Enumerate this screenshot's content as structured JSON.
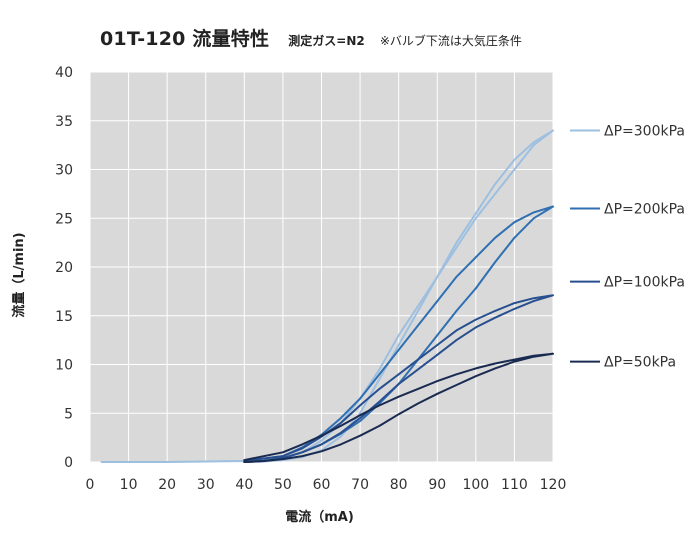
{
  "header": {
    "title": "01T-120 流量特性",
    "subtitle_bold": "測定ガス=N2",
    "subtitle_note": "※バルブ下流は大気圧条件"
  },
  "chart_data": {
    "type": "line",
    "title": "01T-120 流量特性",
    "xlabel": "電流（mA)",
    "ylabel": "流量（L/min)",
    "xlim": [
      0,
      120
    ],
    "ylim": [
      0,
      40
    ],
    "xticks": [
      0,
      10,
      20,
      30,
      40,
      50,
      60,
      70,
      80,
      90,
      100,
      110,
      120
    ],
    "yticks": [
      0,
      5,
      10,
      15,
      20,
      25,
      30,
      35,
      40
    ],
    "grid": true,
    "legend_position": "right",
    "series": [
      {
        "name": "ΔP=300kPa",
        "color": "#9dbfe0",
        "x": [
          3,
          20,
          40,
          50,
          55,
          60,
          65,
          70,
          75,
          80,
          85,
          90,
          95,
          100,
          105,
          110,
          115,
          120,
          115,
          110,
          105,
          100,
          95,
          90,
          85,
          80,
          75,
          70,
          65,
          60,
          55,
          50,
          45,
          40
        ],
        "y": [
          0,
          0,
          0.1,
          0.4,
          1.0,
          2.2,
          4.0,
          6.5,
          9.5,
          13.0,
          16.0,
          19.0,
          22.0,
          25.0,
          27.5,
          30.0,
          32.5,
          34.0,
          32.8,
          31.0,
          28.5,
          25.5,
          22.5,
          19.0,
          15.5,
          12.0,
          8.5,
          5.0,
          2.6,
          1.2,
          0.5,
          0.2,
          0.05,
          0
        ]
      },
      {
        "name": "ΔP=200kPa",
        "color": "#2f6fb2",
        "x": [
          40,
          50,
          55,
          60,
          65,
          70,
          75,
          80,
          85,
          90,
          95,
          100,
          105,
          110,
          115,
          120,
          115,
          110,
          105,
          100,
          95,
          90,
          85,
          80,
          75,
          70,
          65,
          60,
          55,
          50,
          45,
          40
        ],
        "y": [
          0.1,
          0.6,
          1.5,
          2.8,
          4.5,
          6.5,
          9.0,
          11.5,
          14.0,
          16.5,
          19.0,
          21.0,
          23.0,
          24.6,
          25.6,
          26.2,
          25.0,
          23.0,
          20.5,
          17.8,
          15.5,
          13.0,
          10.5,
          8.0,
          6.0,
          4.2,
          2.9,
          1.8,
          1.0,
          0.4,
          0.1,
          0
        ]
      },
      {
        "name": "ΔP=100kPa",
        "color": "#284f8f",
        "x": [
          40,
          50,
          55,
          60,
          65,
          70,
          75,
          80,
          85,
          90,
          95,
          100,
          105,
          110,
          115,
          120,
          115,
          110,
          105,
          100,
          95,
          90,
          85,
          80,
          75,
          70,
          65,
          60,
          55,
          50,
          45,
          40
        ],
        "y": [
          0.1,
          0.6,
          1.4,
          2.6,
          4.0,
          5.8,
          7.5,
          9.0,
          10.5,
          12.0,
          13.5,
          14.6,
          15.5,
          16.3,
          16.8,
          17.1,
          16.5,
          15.7,
          14.8,
          13.8,
          12.5,
          11.0,
          9.5,
          8.0,
          6.2,
          4.5,
          3.0,
          1.8,
          1.0,
          0.4,
          0.1,
          0
        ]
      },
      {
        "name": "ΔP=50kPa",
        "color": "#1a2b52",
        "x": [
          40,
          50,
          55,
          60,
          65,
          70,
          75,
          80,
          85,
          90,
          95,
          100,
          105,
          110,
          115,
          120,
          115,
          110,
          105,
          100,
          95,
          90,
          85,
          80,
          75,
          70,
          65,
          60,
          55,
          50,
          45,
          40
        ],
        "y": [
          0.2,
          1.0,
          1.8,
          2.7,
          3.7,
          4.8,
          5.8,
          6.7,
          7.5,
          8.3,
          9.0,
          9.6,
          10.1,
          10.5,
          10.9,
          11.1,
          10.8,
          10.3,
          9.6,
          8.8,
          7.9,
          7.0,
          6.0,
          4.9,
          3.7,
          2.7,
          1.8,
          1.1,
          0.6,
          0.3,
          0.1,
          0
        ]
      }
    ]
  }
}
